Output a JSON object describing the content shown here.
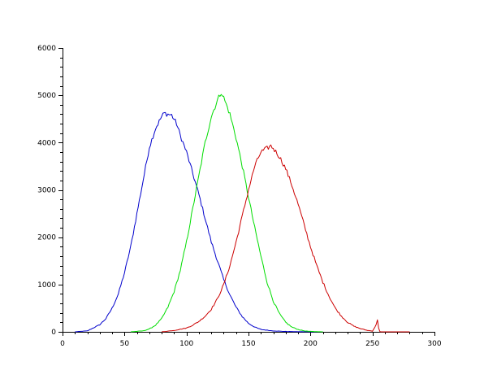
{
  "chart_data": {
    "type": "line",
    "title": "",
    "xlabel": "",
    "ylabel": "",
    "xlim": [
      0,
      300
    ],
    "ylim": [
      0,
      6000
    ],
    "x_ticks": [
      0,
      50,
      100,
      150,
      200,
      250,
      300
    ],
    "x_tick_labels": [
      "0",
      "50",
      "100",
      "150",
      "200",
      "250",
      "300"
    ],
    "y_ticks": [
      0,
      1000,
      2000,
      3000,
      4000,
      5000,
      6000
    ],
    "y_tick_labels": [
      "0",
      "1000",
      "2000",
      "3000",
      "4000",
      "5000",
      "6000"
    ],
    "grid": false,
    "legend": "none",
    "series": [
      {
        "color": "#0000cc",
        "x": [
          10,
          20,
          30,
          35,
          40,
          45,
          50,
          55,
          60,
          65,
          70,
          75,
          80,
          82,
          85,
          88,
          92,
          95,
          100,
          105,
          110,
          115,
          120,
          125,
          130,
          135,
          140,
          145,
          150,
          155,
          160,
          170,
          180,
          190,
          200,
          210
        ],
        "y": [
          0,
          20,
          150,
          280,
          500,
          800,
          1250,
          1800,
          2500,
          3200,
          3900,
          4300,
          4550,
          4620,
          4600,
          4580,
          4400,
          4150,
          3800,
          3350,
          2900,
          2400,
          1900,
          1500,
          1100,
          780,
          520,
          320,
          180,
          100,
          50,
          20,
          8,
          3,
          1,
          0
        ]
      },
      {
        "color": "#00dd00",
        "x": [
          55,
          65,
          70,
          75,
          80,
          85,
          90,
          95,
          100,
          105,
          110,
          115,
          120,
          125,
          128,
          130,
          135,
          140,
          145,
          150,
          155,
          160,
          165,
          170,
          175,
          180,
          185,
          190,
          195,
          200,
          210
        ],
        "y": [
          0,
          20,
          60,
          140,
          280,
          520,
          850,
          1300,
          1900,
          2600,
          3300,
          4000,
          4550,
          4900,
          5070,
          4950,
          4600,
          4100,
          3500,
          2850,
          2200,
          1600,
          1050,
          650,
          380,
          200,
          100,
          50,
          20,
          8,
          0
        ]
      },
      {
        "color": "#cc0000",
        "x": [
          80,
          90,
          100,
          105,
          110,
          115,
          120,
          125,
          130,
          135,
          140,
          145,
          150,
          155,
          160,
          165,
          168,
          170,
          175,
          180,
          185,
          190,
          195,
          200,
          205,
          210,
          215,
          220,
          225,
          230,
          235,
          240,
          245,
          250,
          253,
          254,
          255,
          256,
          257,
          260,
          270,
          280
        ],
        "y": [
          0,
          30,
          80,
          140,
          220,
          330,
          480,
          700,
          1000,
          1400,
          1900,
          2450,
          3000,
          3500,
          3800,
          3880,
          3930,
          3880,
          3700,
          3450,
          3100,
          2700,
          2250,
          1800,
          1400,
          1050,
          750,
          500,
          330,
          200,
          120,
          70,
          35,
          15,
          150,
          260,
          80,
          5,
          0,
          0,
          0,
          0
        ]
      }
    ]
  }
}
